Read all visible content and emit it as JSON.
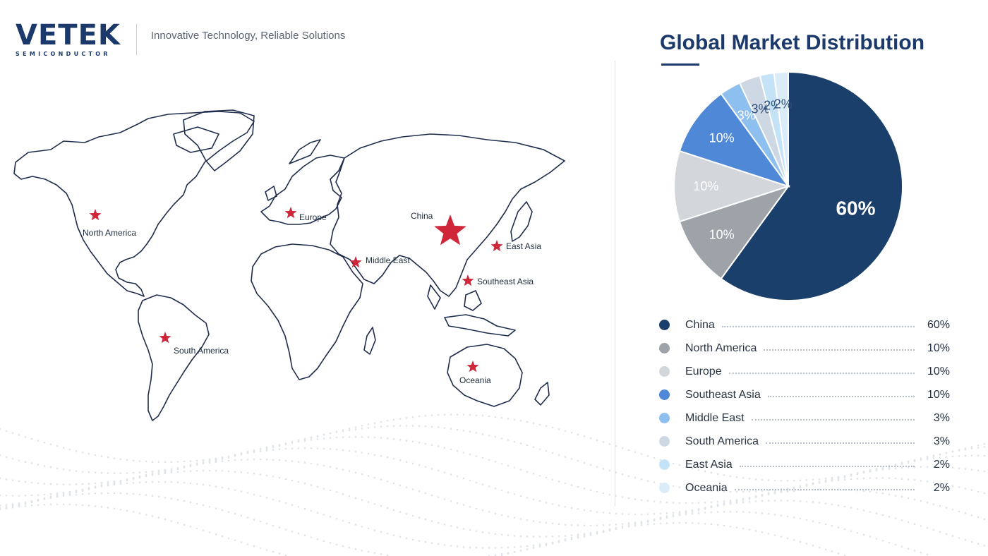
{
  "header": {
    "logo_text": "VETEK",
    "logo_sub": "SEMICONDUCTOR",
    "tagline": "Innovative Technology,  Reliable Solutions"
  },
  "map": {
    "markers": [
      {
        "label": "North America",
        "major": false
      },
      {
        "label": "Europe",
        "major": false
      },
      {
        "label": "China",
        "major": true
      },
      {
        "label": "Middle East",
        "major": false
      },
      {
        "label": "East Asia",
        "major": false
      },
      {
        "label": "Southeast Asia",
        "major": false
      },
      {
        "label": "South America",
        "major": false
      },
      {
        "label": "Oceania",
        "major": false
      }
    ],
    "marker_color": "#d0263a",
    "outline_color": "#1f2d4d"
  },
  "chart_data": {
    "type": "pie",
    "title": "Global Market Distribution",
    "series": [
      {
        "label": "China",
        "value": 60,
        "display": "60%",
        "color": "#1b3f6b"
      },
      {
        "label": "North America",
        "value": 10,
        "display": "10%",
        "color": "#9ea3a9"
      },
      {
        "label": "Europe",
        "value": 10,
        "display": "10%",
        "color": "#d3d6da"
      },
      {
        "label": "Southeast Asia",
        "value": 10,
        "display": "10%",
        "color": "#4f88d6"
      },
      {
        "label": "Middle East",
        "value": 3,
        "display": "3%",
        "color": "#8ec0ef"
      },
      {
        "label": "South America",
        "value": 3,
        "display": "3%",
        "color": "#cdd8e4"
      },
      {
        "label": "East Asia",
        "value": 2,
        "display": "2%",
        "color": "#c4e3f7"
      },
      {
        "label": "Oceania",
        "value": 2,
        "display": "2%",
        "color": "#d9ecf8"
      }
    ],
    "legend_position": "bottom"
  }
}
